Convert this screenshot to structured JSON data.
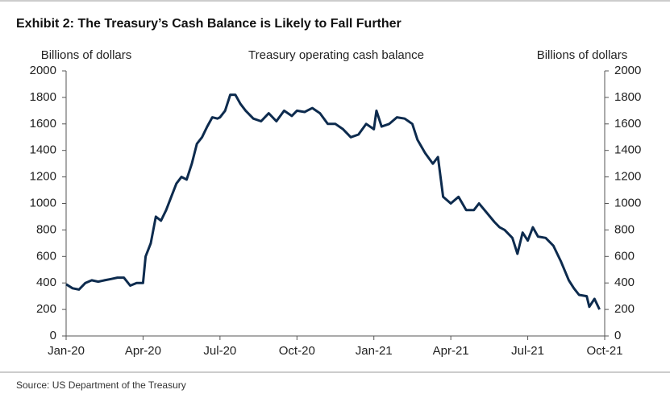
{
  "chart_data": {
    "type": "line",
    "title": "Exhibit 2: The Treasury’s Cash Balance is Likely to Fall Further",
    "subtitle": "Treasury operating cash balance",
    "ylabel": "Billions of dollars",
    "y2label": "Billions of dollars",
    "source": "Source: US Department of the Treasury",
    "xlim": [
      0,
      21
    ],
    "xticks": [
      {
        "value": 0,
        "label": "Jan-20"
      },
      {
        "value": 3,
        "label": "Apr-20"
      },
      {
        "value": 6,
        "label": "Jul-20"
      },
      {
        "value": 9,
        "label": "Oct-20"
      },
      {
        "value": 12,
        "label": "Jan-21"
      },
      {
        "value": 15,
        "label": "Apr-21"
      },
      {
        "value": 18,
        "label": "Jul-21"
      },
      {
        "value": 21,
        "label": "Oct-21"
      }
    ],
    "ylim": [
      0,
      2000
    ],
    "yticks": [
      0,
      200,
      400,
      600,
      800,
      1000,
      1200,
      1400,
      1600,
      1800,
      2000
    ],
    "y2lim": [
      0,
      2000
    ],
    "y2ticks": [
      0,
      200,
      400,
      600,
      800,
      1000,
      1200,
      1400,
      1600,
      1800,
      2000
    ],
    "series": [
      {
        "name": "Treasury operating cash balance",
        "color": "#0d2b4e",
        "x": [
          0,
          0.25,
          0.5,
          0.75,
          1,
          1.25,
          1.5,
          1.75,
          2,
          2.25,
          2.5,
          2.75,
          3,
          3.1,
          3.3,
          3.5,
          3.7,
          3.9,
          4.1,
          4.3,
          4.5,
          4.7,
          4.9,
          5.1,
          5.3,
          5.5,
          5.7,
          5.9,
          6,
          6.2,
          6.4,
          6.6,
          6.8,
          7,
          7.3,
          7.6,
          7.9,
          8.2,
          8.5,
          8.8,
          9,
          9.3,
          9.6,
          9.9,
          10.2,
          10.5,
          10.8,
          11.1,
          11.4,
          11.7,
          12,
          12.1,
          12.3,
          12.6,
          12.9,
          13.2,
          13.5,
          13.7,
          14,
          14.3,
          14.5,
          14.7,
          15,
          15.3,
          15.6,
          15.9,
          16.1,
          16.4,
          16.7,
          16.9,
          17.1,
          17.4,
          17.6,
          17.8,
          18,
          18.2,
          18.4,
          18.7,
          19,
          19.3,
          19.6,
          19.8,
          20,
          20.3,
          20.4,
          20.6,
          20.8
        ],
        "values": [
          390,
          360,
          350,
          400,
          420,
          410,
          420,
          430,
          440,
          440,
          380,
          400,
          400,
          600,
          700,
          900,
          870,
          950,
          1050,
          1150,
          1200,
          1180,
          1300,
          1450,
          1500,
          1580,
          1650,
          1640,
          1650,
          1700,
          1820,
          1820,
          1750,
          1700,
          1640,
          1620,
          1680,
          1620,
          1700,
          1660,
          1700,
          1690,
          1720,
          1680,
          1600,
          1600,
          1560,
          1500,
          1520,
          1600,
          1560,
          1700,
          1580,
          1600,
          1650,
          1640,
          1600,
          1480,
          1380,
          1300,
          1350,
          1050,
          1000,
          1050,
          950,
          950,
          1000,
          930,
          860,
          820,
          800,
          740,
          620,
          780,
          720,
          820,
          750,
          740,
          680,
          560,
          420,
          360,
          310,
          300,
          220,
          280,
          200
        ]
      }
    ]
  }
}
